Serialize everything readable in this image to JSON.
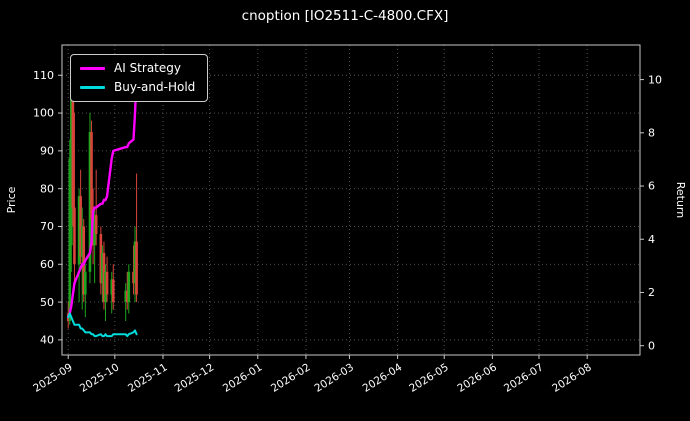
{
  "colors": {
    "background": "#000000",
    "text": "#ffffff",
    "grid": "#5a5a5a",
    "spine": "#c8c8c8",
    "up": "#1ea51e",
    "down": "#d9453a",
    "ai_strategy": "#ff00ff",
    "buy_and_hold": "#00dcdc"
  },
  "chart_data": {
    "type": "candlestick+line",
    "title": "cnoption [IO2511-C-4800.CFX]",
    "ylabel_left": "Price",
    "ylabel_right": "Return",
    "ylim_left": [
      36,
      118
    ],
    "ylim_right": [
      -0.35,
      11.3
    ],
    "yticks_left": [
      40,
      50,
      60,
      70,
      80,
      90,
      100,
      110
    ],
    "yticks_right": [
      0,
      2,
      4,
      6,
      8,
      10
    ],
    "xticks": [
      "2025-09",
      "2025-10",
      "2025-11",
      "2025-12",
      "2026-01",
      "2026-02",
      "2026-03",
      "2026-04",
      "2026-05",
      "2026-06",
      "2026-07",
      "2026-08"
    ],
    "x_domain": [
      "2025-08-28",
      "2026-09-04"
    ],
    "grid": true,
    "legend_position": "top-left",
    "candles_note": "rows are [date, open, high, low, close]",
    "candles_ohlc": [
      [
        "2025-09-01",
        47,
        50,
        43,
        45
      ],
      [
        "2025-09-02",
        45,
        93,
        44,
        88
      ],
      [
        "2025-09-03",
        65,
        110,
        58,
        105
      ],
      [
        "2025-09-04",
        105,
        108,
        70,
        75
      ],
      [
        "2025-09-05",
        75,
        100,
        55,
        60
      ],
      [
        "2025-09-08",
        60,
        80,
        50,
        78
      ],
      [
        "2025-09-09",
        78,
        85,
        60,
        62
      ],
      [
        "2025-09-10",
        62,
        75,
        48,
        70
      ],
      [
        "2025-09-11",
        70,
        72,
        50,
        52
      ],
      [
        "2025-09-12",
        52,
        60,
        46,
        58
      ],
      [
        "2025-09-15",
        58,
        100,
        55,
        95
      ],
      [
        "2025-09-16",
        95,
        98,
        70,
        72
      ],
      [
        "2025-09-17",
        72,
        80,
        60,
        65
      ],
      [
        "2025-09-18",
        65,
        75,
        55,
        73
      ],
      [
        "2025-09-19",
        73,
        85,
        65,
        68
      ],
      [
        "2025-09-22",
        68,
        70,
        52,
        55
      ],
      [
        "2025-09-23",
        55,
        65,
        50,
        63
      ],
      [
        "2025-09-24",
        63,
        66,
        48,
        50
      ],
      [
        "2025-09-25",
        50,
        60,
        45,
        58
      ],
      [
        "2025-09-26",
        58,
        62,
        50,
        52
      ],
      [
        "2025-09-29",
        52,
        58,
        47,
        56
      ],
      [
        "2025-09-30",
        56,
        60,
        48,
        50
      ],
      [
        "2025-10-08",
        50,
        55,
        45,
        53
      ],
      [
        "2025-10-09",
        53,
        58,
        48,
        50
      ],
      [
        "2025-10-10",
        50,
        60,
        47,
        58
      ],
      [
        "2025-10-13",
        58,
        65,
        52,
        55
      ],
      [
        "2025-10-14",
        55,
        70,
        50,
        66
      ],
      [
        "2025-10-15",
        66,
        84,
        50,
        52
      ]
    ],
    "series": [
      {
        "name": "AI Strategy",
        "color": "#ff00ff",
        "axis": "left",
        "width": 2.4,
        "values": [
          46,
          47,
          49,
          52,
          55,
          58,
          59,
          60,
          60,
          61,
          63,
          66,
          74,
          75,
          75,
          76,
          76,
          77,
          77,
          78,
          88,
          90,
          91,
          91,
          92,
          93,
          100,
          110
        ]
      },
      {
        "name": "Buy-and-Hold",
        "color": "#00dcdc",
        "axis": "left",
        "width": 2,
        "values": [
          46,
          47,
          46,
          45,
          44,
          44,
          43,
          43,
          42.5,
          42,
          42,
          41.5,
          41.5,
          41,
          41,
          41.5,
          41,
          41,
          41.5,
          41,
          41,
          41.5,
          41.5,
          41,
          41.5,
          42,
          42.5,
          41.5
        ]
      }
    ]
  }
}
